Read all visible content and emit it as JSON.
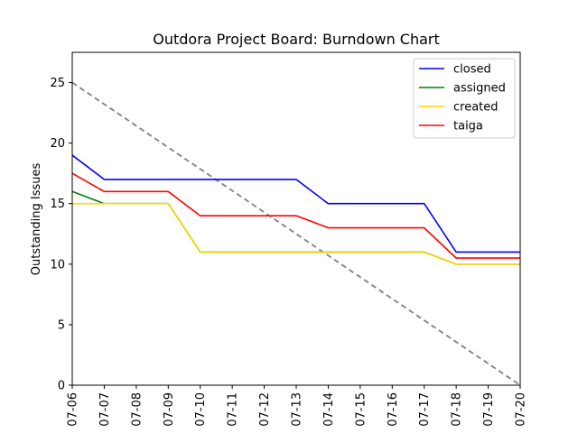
{
  "chart_data": {
    "type": "line",
    "title": "Outdora Project Board: Burndown Chart",
    "xlabel": "",
    "ylabel": "Outstanding Issues",
    "x": [
      "07-06",
      "07-07",
      "07-08",
      "07-09",
      "07-10",
      "07-11",
      "07-12",
      "07-13",
      "07-14",
      "07-15",
      "07-16",
      "07-17",
      "07-18",
      "07-19",
      "07-20"
    ],
    "ylim": [
      0,
      27.5
    ],
    "yticks": [
      0,
      5,
      10,
      15,
      20,
      25
    ],
    "grid": false,
    "legend_position": "top-right",
    "series": [
      {
        "name": "closed",
        "color": "#0000ff",
        "values": [
          19,
          17,
          17,
          17,
          17,
          17,
          17,
          17,
          15,
          15,
          15,
          15,
          11,
          11,
          11
        ]
      },
      {
        "name": "assigned",
        "color": "#008000",
        "values": [
          16,
          15,
          15,
          15,
          11,
          11,
          11,
          11,
          11,
          11,
          11,
          11,
          10,
          10,
          10
        ]
      },
      {
        "name": "created",
        "color": "#ffd700",
        "values": [
          15,
          15,
          15,
          15,
          11,
          11,
          11,
          11,
          11,
          11,
          11,
          11,
          10,
          10,
          10
        ]
      },
      {
        "name": "taiga",
        "color": "#ff0000",
        "values": [
          17.5,
          16,
          16,
          16,
          14,
          14,
          14,
          14,
          13,
          13,
          13,
          13,
          10.5,
          10.5,
          10.5
        ]
      }
    ],
    "ideal_line": {
      "color": "#808080",
      "style": "dashed",
      "start": 25,
      "end": 0
    }
  }
}
